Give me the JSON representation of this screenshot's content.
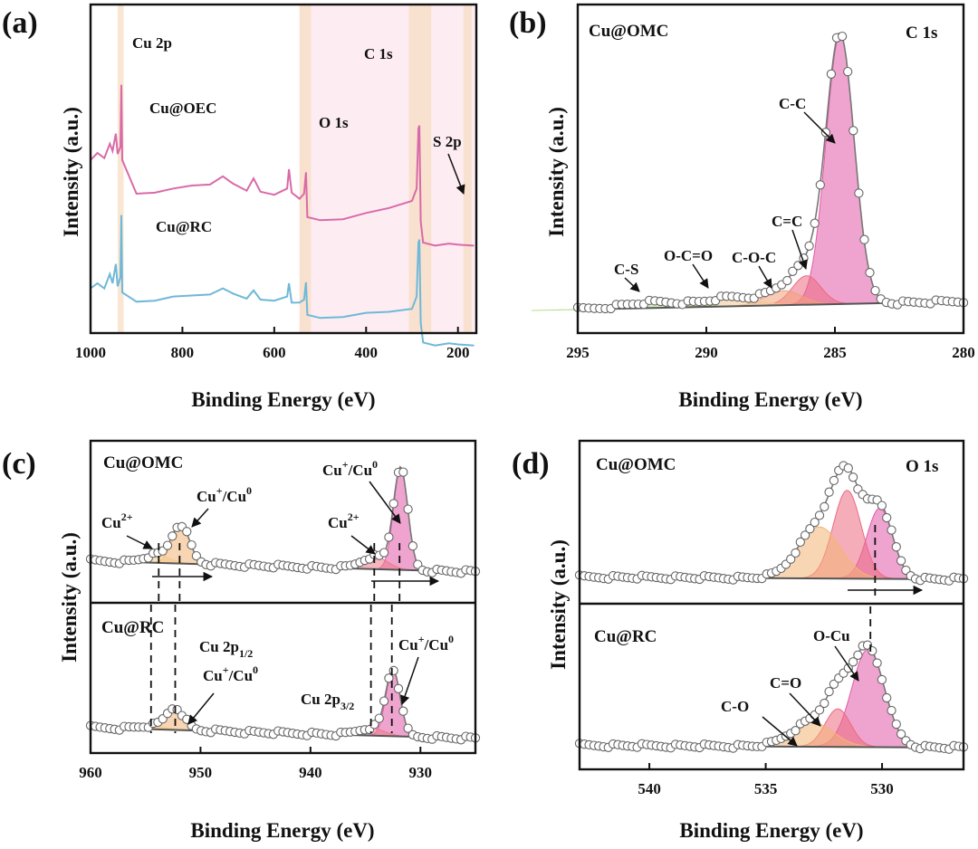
{
  "chart_data": [
    {
      "id": "a",
      "type": "line",
      "panel_label": "(a)",
      "xlabel": "Binding Energy (eV)",
      "ylabel": "Intensity (a.u.)",
      "xlim": [
        1000,
        160
      ],
      "xticks": [
        "1000",
        "800",
        "600",
        "400",
        "200"
      ],
      "xtick_values": [
        1000,
        800,
        600,
        400,
        200
      ],
      "highlight_bands": [
        {
          "from": 941,
          "to": 928,
          "color": "#f6dcc0"
        },
        {
          "from": 545,
          "to": 520,
          "color": "#f6dcc0"
        },
        {
          "from": 307,
          "to": 258,
          "color": "#f6dcc0"
        },
        {
          "from": 188,
          "to": 170,
          "color": "#f6dcc0"
        },
        {
          "from": 545,
          "to": 160,
          "color": "#fce6ee"
        }
      ],
      "series": [
        {
          "name": "Cu@OEC",
          "color": "#d96aa8",
          "points": [
            [
              1000,
              0.72
            ],
            [
              985,
              0.76
            ],
            [
              970,
              0.74
            ],
            [
              958,
              0.8
            ],
            [
              952,
              0.77
            ],
            [
              945,
              0.86
            ],
            [
              941,
              0.75
            ],
            [
              935,
              0.79
            ],
            [
              933,
              1.1
            ],
            [
              931,
              0.72
            ],
            [
              900,
              0.56
            ],
            [
              860,
              0.57
            ],
            [
              820,
              0.58
            ],
            [
              780,
              0.6
            ],
            [
              740,
              0.61
            ],
            [
              712,
              0.64
            ],
            [
              690,
              0.61
            ],
            [
              660,
              0.58
            ],
            [
              645,
              0.63
            ],
            [
              630,
              0.57
            ],
            [
              600,
              0.56
            ],
            [
              572,
              0.58
            ],
            [
              568,
              0.68
            ],
            [
              562,
              0.57
            ],
            [
              545,
              0.53
            ],
            [
              535,
              0.56
            ],
            [
              531,
              0.67
            ],
            [
              528,
              0.44
            ],
            [
              500,
              0.43
            ],
            [
              450,
              0.44
            ],
            [
              400,
              0.46
            ],
            [
              350,
              0.49
            ],
            [
              300,
              0.53
            ],
            [
              290,
              0.58
            ],
            [
              286,
              0.88
            ],
            [
              284,
              0.9
            ],
            [
              281,
              0.42
            ],
            [
              276,
              0.32
            ],
            [
              250,
              0.31
            ],
            [
              220,
              0.31
            ],
            [
              200,
              0.31
            ],
            [
              165,
              0.31
            ]
          ]
        },
        {
          "name": "Cu@RC",
          "color": "#6fb8d8",
          "points": [
            [
              1000,
              0.09
            ],
            [
              985,
              0.12
            ],
            [
              970,
              0.1
            ],
            [
              958,
              0.16
            ],
            [
              952,
              0.12
            ],
            [
              945,
              0.22
            ],
            [
              941,
              0.1
            ],
            [
              935,
              0.15
            ],
            [
              933,
              0.46
            ],
            [
              931,
              0.07
            ],
            [
              900,
              0.03
            ],
            [
              860,
              0.04
            ],
            [
              820,
              0.05
            ],
            [
              780,
              0.06
            ],
            [
              740,
              0.07
            ],
            [
              712,
              0.09
            ],
            [
              690,
              0.07
            ],
            [
              660,
              0.05
            ],
            [
              645,
              0.08
            ],
            [
              630,
              0.04
            ],
            [
              600,
              0.04
            ],
            [
              572,
              0.05
            ],
            [
              568,
              0.12
            ],
            [
              562,
              0.03
            ],
            [
              545,
              0.02
            ],
            [
              535,
              0.04
            ],
            [
              531,
              0.13
            ],
            [
              528,
              -0.04
            ],
            [
              500,
              -0.05
            ],
            [
              450,
              -0.04
            ],
            [
              400,
              -0.03
            ],
            [
              350,
              -0.02
            ],
            [
              300,
              0.0
            ],
            [
              290,
              0.05
            ],
            [
              286,
              0.32
            ],
            [
              284,
              0.34
            ],
            [
              281,
              -0.08
            ],
            [
              276,
              -0.17
            ],
            [
              250,
              -0.18
            ],
            [
              220,
              -0.18
            ],
            [
              200,
              -0.18
            ],
            [
              165,
              -0.18
            ]
          ]
        }
      ],
      "annotations": [
        "Cu 2p",
        "C 1s",
        "O 1s",
        "S 2p",
        "Cu@OEC",
        "Cu@RC"
      ]
    },
    {
      "id": "b",
      "type": "line",
      "panel_label": "(b)",
      "sample": "Cu@OMC",
      "region": "C 1s",
      "xlabel": "Binding Energy (eV)",
      "ylabel": "Intensity (a.u.)",
      "xlim": [
        295,
        280
      ],
      "xticks": [
        "295",
        "290",
        "285",
        "280"
      ],
      "xtick_values": [
        295,
        290,
        285,
        280
      ],
      "peaks": [
        {
          "name": "C-C",
          "center": 284.8,
          "height": 0.93,
          "width": 0.55,
          "color": "#e25aa8"
        },
        {
          "name": "C=C",
          "center": 286.1,
          "height": 0.1,
          "width": 0.55,
          "color": "#ec6a82"
        },
        {
          "name": "C-O-C",
          "center": 287.0,
          "height": 0.05,
          "width": 0.7,
          "color": "#f2a07a"
        },
        {
          "name": "O-C=O",
          "center": 289.0,
          "height": 0.03,
          "width": 0.9,
          "color": "#f3c98f"
        },
        {
          "name": "C-S",
          "center": 292.0,
          "height": 0.02,
          "width": 1.2,
          "color": "#b7dc8a"
        }
      ],
      "annotations": [
        "C-C",
        "C=C",
        "C-O-C",
        "O-C=O",
        "C-S"
      ]
    },
    {
      "id": "c",
      "type": "line",
      "panel_label": "(c)",
      "region": "Cu 2p",
      "xlabel": "Binding Energy (eV)",
      "ylabel": "Intensity (a.u.)",
      "xlim": [
        960,
        925
      ],
      "xticks": [
        "960",
        "950",
        "940",
        "930"
      ],
      "xtick_values": [
        960,
        950,
        940,
        930
      ],
      "subpanels": [
        {
          "sample": "Cu@OMC",
          "peaks": [
            {
              "name": "Cu+/Cu0 2p1/2",
              "center": 951.8,
              "height": 0.3,
              "width": 0.8,
              "color": "#f2b574"
            },
            {
              "name": "Cu2+ 2p1/2",
              "center": 954.0,
              "height": 0.06,
              "width": 1.2,
              "color": "#f4c98a"
            },
            {
              "name": "Cu+/Cu0 2p3/2",
              "center": 931.8,
              "height": 0.8,
              "width": 0.65,
              "color": "#e25aa8"
            },
            {
              "name": "Cu2+ 2p3/2",
              "center": 934.2,
              "height": 0.1,
              "width": 1.2,
              "color": "#ec7a8a"
            }
          ],
          "dashed_at": [
            953.8,
            951.9,
            934.2,
            931.9
          ]
        },
        {
          "sample": "Cu@RC",
          "peaks": [
            {
              "name": "Cu+/Cu0 2p1/2",
              "center": 952.3,
              "height": 0.2,
              "width": 0.8,
              "color": "#f2b574"
            },
            {
              "name": "Cu2+ 2p1/2",
              "center": 954.5,
              "height": 0.03,
              "width": 1.2,
              "color": "#f4c98a"
            },
            {
              "name": "Cu+/Cu0 2p3/2",
              "center": 932.5,
              "height": 0.6,
              "width": 0.65,
              "color": "#e25aa8"
            },
            {
              "name": "Cu2+ 2p3/2",
              "center": 934.5,
              "height": 0.07,
              "width": 1.2,
              "color": "#ec7a8a"
            }
          ],
          "dashed_at": [
            954.5,
            952.3,
            934.5,
            932.6
          ]
        }
      ],
      "annotations": [
        "Cu+/Cu0",
        "Cu2+",
        "Cu 2p1/2",
        "Cu 2p3/2"
      ]
    },
    {
      "id": "d",
      "type": "line",
      "panel_label": "(d)",
      "region": "O 1s",
      "xlabel": "Binding Energy (eV)",
      "ylabel": "Intensity (a.u.)",
      "xlim": [
        543,
        526.5
      ],
      "xticks": [
        "540",
        "535",
        "530"
      ],
      "xtick_values": [
        540,
        535,
        530
      ],
      "subpanels": [
        {
          "sample": "Cu@OMC",
          "peaks": [
            {
              "name": "O-Cu",
              "center": 530.1,
              "height": 0.52,
              "width": 0.55,
              "color": "#e25aa8"
            },
            {
              "name": "C=O",
              "center": 531.5,
              "height": 0.65,
              "width": 0.6,
              "color": "#ec6a82"
            },
            {
              "name": "C-O",
              "center": 532.7,
              "height": 0.38,
              "width": 0.9,
              "color": "#f2b574"
            }
          ],
          "dashed_at": [
            530.3
          ]
        },
        {
          "sample": "Cu@RC",
          "peaks": [
            {
              "name": "O-Cu",
              "center": 530.6,
              "height": 0.72,
              "width": 0.7,
              "color": "#e25aa8"
            },
            {
              "name": "C=O",
              "center": 531.9,
              "height": 0.28,
              "width": 0.55,
              "color": "#ec6a82"
            },
            {
              "name": "C-O",
              "center": 533.0,
              "height": 0.18,
              "width": 0.9,
              "color": "#f2b574"
            }
          ],
          "dashed_at": [
            530.5
          ]
        }
      ],
      "annotations": [
        "O-Cu",
        "C=O",
        "C-O"
      ]
    }
  ],
  "labels": {
    "a": {
      "panel": "(a)",
      "cu2p": "Cu 2p",
      "c1s": "C 1s",
      "o1s": "O 1s",
      "s2p": "S 2p",
      "oec": "Cu@OEC",
      "rc": "Cu@RC",
      "ylabel": "Intensity (a.u.)",
      "xlabel": "Binding Energy (eV)"
    },
    "b": {
      "panel": "(b)",
      "sample": "Cu@OMC",
      "region": "C 1s",
      "cc": "C-C",
      "ceqc": "C=C",
      "coc": "C-O-C",
      "oco": "O-C=O",
      "cs": "C-S",
      "ylabel": "Intensity (a.u.)",
      "xlabel": "Binding Energy (eV)"
    },
    "c": {
      "panel": "(c)",
      "omc": "Cu@OMC",
      "rc": "Cu@RC",
      "cu2": "Cu",
      "cu2sup": "2+",
      "cupre": "Cu",
      "cusup1": "+",
      "cumid": "/Cu",
      "cusup0": "0",
      "p12pre": "Cu 2p",
      "p12sub": "1/2",
      "p32pre": "Cu 2p",
      "p32sub": "3/2",
      "ylabel": "Intensity (a.u.)",
      "xlabel": "Binding Energy (eV)"
    },
    "d": {
      "panel": "(d)",
      "omc": "Cu@OMC",
      "rc": "Cu@RC",
      "region": "O 1s",
      "ocu": "O-Cu",
      "ceqo": "C=O",
      "co": "C-O",
      "ylabel": "Intensity (a.u.)",
      "xlabel": "Binding Energy (eV)"
    }
  }
}
